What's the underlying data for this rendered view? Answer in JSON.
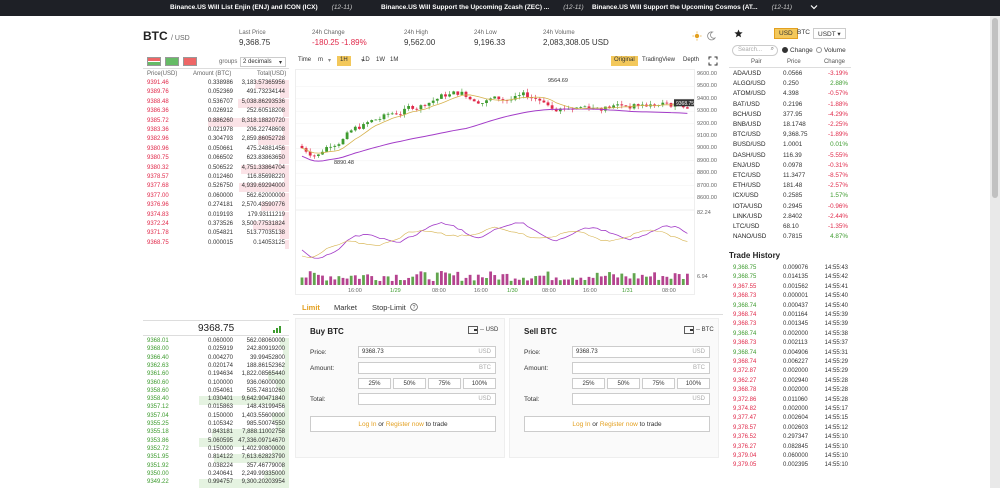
{
  "news": [
    {
      "title": "Binance.US Will List Enjin (ENJ) and ICON (ICX)",
      "date": "(12-11)"
    },
    {
      "title": "Binance.US Will Support the Upcoming Zcash (ZEC) ...",
      "date": "(12-11)"
    },
    {
      "title": "Binance.US Will Support the Upcoming Cosmos (AT...",
      "date": "(12-11)"
    }
  ],
  "header": {
    "symbol": "BTC",
    "quote": "/ USD",
    "last_price_label": "Last Price",
    "last_price": "9,368.75",
    "change_label": "24h Change",
    "change": "-180.25 -1.89%",
    "high_label": "24h High",
    "high": "9,562.00",
    "low_label": "24h Low",
    "low": "9,196.33",
    "volume_label": "24h Volume",
    "volume": "2,083,308.05 USD"
  },
  "orderbook": {
    "groups_label": "groups",
    "decimals": "2 decimals",
    "col_price": "Price(USD)",
    "col_amount": "Amount (BTC)",
    "col_total": "Total(USD)",
    "mid_price": "9368.75",
    "asks": [
      [
        "9391.46",
        "0.338986",
        "3,183.57365956"
      ],
      [
        "9389.76",
        "0.052369",
        "491.73234144"
      ],
      [
        "9388.48",
        "0.536707",
        "5,038.86293536"
      ],
      [
        "9386.36",
        "0.026912",
        "252.60518208"
      ],
      [
        "9385.72",
        "0.886260",
        "8,318.18820720"
      ],
      [
        "9383.36",
        "0.021978",
        "206.22748608"
      ],
      [
        "9382.96",
        "0.304793",
        "2,859.86052728"
      ],
      [
        "9380.96",
        "0.050661",
        "475.24881456"
      ],
      [
        "9380.75",
        "0.066502",
        "623.83863650"
      ],
      [
        "9380.32",
        "0.506522",
        "4,751.33864704"
      ],
      [
        "9378.57",
        "0.012460",
        "116.85698220"
      ],
      [
        "9377.68",
        "0.526750",
        "4,939.69294000"
      ],
      [
        "9377.00",
        "0.060000",
        "562.62000000"
      ],
      [
        "9376.96",
        "0.274181",
        "2,570.43590776"
      ],
      [
        "9374.83",
        "0.019193",
        "179.93111219"
      ],
      [
        "9372.24",
        "0.373526",
        "3,500.77531824"
      ],
      [
        "9371.78",
        "0.054821",
        "513.77035138"
      ],
      [
        "9368.75",
        "0.000015",
        "0.14053125"
      ]
    ],
    "bids": [
      [
        "9368.01",
        "0.060000",
        "562.08060000"
      ],
      [
        "9368.00",
        "0.025919",
        "242.80919200"
      ],
      [
        "9366.40",
        "0.004270",
        "39.99452800"
      ],
      [
        "9362.63",
        "0.020174",
        "188.86152362"
      ],
      [
        "9361.60",
        "0.194634",
        "1,822.08565440"
      ],
      [
        "9360.60",
        "0.100000",
        "936.06000000"
      ],
      [
        "9358.60",
        "0.054061",
        "505.74810260"
      ],
      [
        "9358.40",
        "1.030401",
        "9,642.90471840"
      ],
      [
        "9357.12",
        "0.015863",
        "148.43199456"
      ],
      [
        "9357.04",
        "0.150000",
        "1,403.55600000"
      ],
      [
        "9355.25",
        "0.105342",
        "985.50074550"
      ],
      [
        "9355.18",
        "0.843181",
        "7,888.11002758"
      ],
      [
        "9353.86",
        "5.060595",
        "47,336.09714670"
      ],
      [
        "9352.72",
        "0.150000",
        "1,402.90800000"
      ],
      [
        "9351.95",
        "0.814122",
        "7,613.62823790"
      ],
      [
        "9351.92",
        "0.038224",
        "357.46779008"
      ],
      [
        "9350.00",
        "0.240641",
        "2,249.99335000"
      ],
      [
        "9349.22",
        "0.994757",
        "9,300.20203954"
      ]
    ]
  },
  "chart": {
    "time_label": "Time",
    "intervals": [
      "m",
      "1H",
      "1D",
      "1W",
      "1M"
    ],
    "views": [
      "Original",
      "TradingView",
      "Depth"
    ],
    "y_ticks": [
      "9600.00",
      "9500.00",
      "9400.00",
      "9300.00",
      "9200.00",
      "9100.00",
      "9000.00",
      "8900.00",
      "8800.00",
      "8700.00",
      "8600.00"
    ],
    "x_ticks": [
      "16:00",
      "1/29",
      "08:00",
      "16:00",
      "1/30",
      "08:00",
      "16:00",
      "1/31",
      "08:00"
    ],
    "high_marker": "9564.69",
    "low_marker": "8890.48",
    "price_tag": "9368.75",
    "indicator_ticks": [
      "82.24",
      "6.94"
    ],
    "colors": {
      "up": "#3d9b2e",
      "down": "#e0294a",
      "ma1": "#a33cc8",
      "ma2": "#d6b24d"
    }
  },
  "order_form": {
    "tabs": [
      "Limit",
      "Market",
      "Stop-Limit"
    ],
    "buy": {
      "title": "Buy BTC",
      "currency": "-- USD",
      "price_label": "Price:",
      "price": "9368.73",
      "price_unit": "USD",
      "amount_label": "Amount:",
      "amount_unit": "BTC",
      "total_label": "Total:",
      "total_unit": "USD",
      "pcts": [
        "25%",
        "50%",
        "75%",
        "100%"
      ],
      "login": "Log In",
      "or": "or",
      "register": "Register now",
      "to_trade": "to trade"
    },
    "sell": {
      "title": "Sell BTC",
      "currency": "-- BTC",
      "price_label": "Price:",
      "price": "9368.73",
      "price_unit": "USD",
      "amount_label": "Amount:",
      "amount_unit": "BTC",
      "total_label": "Total:",
      "total_unit": "USD",
      "pcts": [
        "25%",
        "50%",
        "75%",
        "100%"
      ],
      "login": "Log In",
      "or": "or",
      "register": "Register now",
      "to_trade": "to trade"
    }
  },
  "markets": {
    "tabs": [
      "USD",
      "BTC",
      "USDT"
    ],
    "search_placeholder": "Search...",
    "radio_change": "Change",
    "radio_volume": "Volume",
    "col_pair": "Pair",
    "col_price": "Price",
    "col_change": "Change",
    "rows": [
      [
        "ADA/USD",
        "0.0566",
        "-3.19%"
      ],
      [
        "ALGO/USD",
        "0.250",
        "2.88%"
      ],
      [
        "ATOM/USD",
        "4.398",
        "-0.57%"
      ],
      [
        "BAT/USD",
        "0.2196",
        "-1.88%"
      ],
      [
        "BCH/USD",
        "377.95",
        "-4.29%"
      ],
      [
        "BNB/USD",
        "18.1748",
        "-2.25%"
      ],
      [
        "BTC/USD",
        "9,368.75",
        "-1.89%"
      ],
      [
        "BUSD/USD",
        "1.0001",
        "0.01%"
      ],
      [
        "DASH/USD",
        "116.39",
        "-5.55%"
      ],
      [
        "ENJ/USD",
        "0.0978",
        "-0.31%"
      ],
      [
        "ETC/USD",
        "11.3477",
        "-8.57%"
      ],
      [
        "ETH/USD",
        "181.48",
        "-2.57%"
      ],
      [
        "ICX/USD",
        "0.2585",
        "1.57%"
      ],
      [
        "IOTA/USD",
        "0.2945",
        "-0.96%"
      ],
      [
        "LINK/USD",
        "2.8402",
        "-2.44%"
      ],
      [
        "LTC/USD",
        "68.10",
        "-1.35%"
      ],
      [
        "NANO/USD",
        "0.7815",
        "4.87%"
      ]
    ]
  },
  "trade_history": {
    "title": "Trade History",
    "rows": [
      [
        "9,368.75",
        "0.009076",
        "14:55:43",
        "g"
      ],
      [
        "9,368.75",
        "0.014135",
        "14:55:42",
        "g"
      ],
      [
        "9,367.55",
        "0.001562",
        "14:55:41",
        "r"
      ],
      [
        "9,368.73",
        "0.000001",
        "14:55:40",
        "r"
      ],
      [
        "9,368.74",
        "0.000437",
        "14:55:40",
        "g"
      ],
      [
        "9,368.74",
        "0.001164",
        "14:55:39",
        "r"
      ],
      [
        "9,368.73",
        "0.001345",
        "14:55:39",
        "r"
      ],
      [
        "9,368.74",
        "0.002000",
        "14:55:38",
        "g"
      ],
      [
        "9,368.73",
        "0.002113",
        "14:55:37",
        "r"
      ],
      [
        "9,368.74",
        "0.004906",
        "14:55:31",
        "g"
      ],
      [
        "9,368.74",
        "0.006227",
        "14:55:29",
        "r"
      ],
      [
        "9,372.87",
        "0.002000",
        "14:55:29",
        "r"
      ],
      [
        "9,362.27",
        "0.002940",
        "14:55:28",
        "r"
      ],
      [
        "9,368.78",
        "0.002000",
        "14:55:28",
        "r"
      ],
      [
        "9,372.86",
        "0.011060",
        "14:55:28",
        "r"
      ],
      [
        "9,374.82",
        "0.002000",
        "14:55:17",
        "r"
      ],
      [
        "9,377.47",
        "0.002604",
        "14:55:15",
        "r"
      ],
      [
        "9,378.57",
        "0.002603",
        "14:55:12",
        "r"
      ],
      [
        "9,376.52",
        "0.297347",
        "14:55:10",
        "r"
      ],
      [
        "9,376.27",
        "0.082845",
        "14:55:10",
        "r"
      ],
      [
        "9,379.04",
        "0.060000",
        "14:55:10",
        "r"
      ],
      [
        "9,379.05",
        "0.002395",
        "14:55:10",
        "r"
      ]
    ]
  }
}
